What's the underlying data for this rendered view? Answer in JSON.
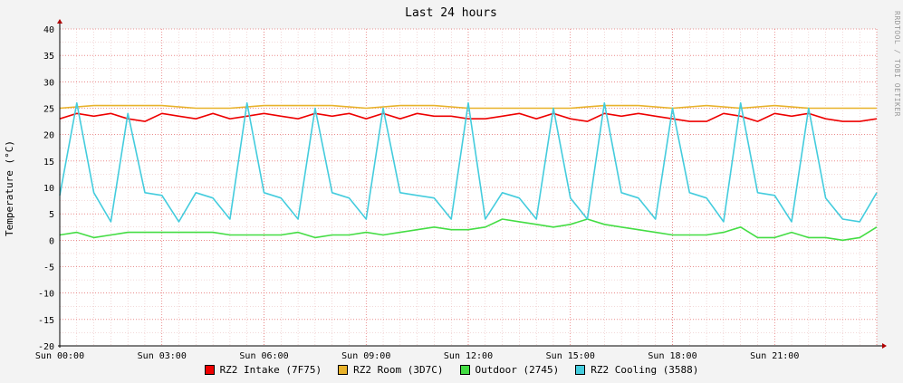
{
  "chart_data": {
    "type": "line",
    "title": "Last 24 hours",
    "ylabel": "Temperature (°C)",
    "xlabel": "",
    "ylim": [
      -20,
      40
    ],
    "yticks": [
      "40",
      "35",
      "30",
      "25",
      "20",
      "15",
      "10",
      "5",
      "0",
      "-5",
      "-10",
      "-15",
      "-20"
    ],
    "xticks": [
      "Sun 00:00",
      "Sun 03:00",
      "Sun 06:00",
      "Sun 09:00",
      "Sun 12:00",
      "Sun 15:00",
      "Sun 18:00",
      "Sun 21:00"
    ],
    "xlim_hours": [
      0,
      24
    ],
    "grid": true,
    "legend_position": "bottom",
    "series": [
      {
        "name": "RZ2 Intake (7F75)",
        "color": "#ee0000",
        "x": [
          0,
          0.5,
          1,
          1.5,
          2,
          2.5,
          3,
          3.5,
          4,
          4.5,
          5,
          5.5,
          6,
          6.5,
          7,
          7.5,
          8,
          8.5,
          9,
          9.5,
          10,
          10.5,
          11,
          11.5,
          12,
          12.5,
          13,
          13.5,
          14,
          14.5,
          15,
          15.5,
          16,
          16.5,
          17,
          17.5,
          18,
          18.5,
          19,
          19.5,
          20,
          20.5,
          21,
          21.5,
          22,
          22.5,
          23,
          23.5,
          24
        ],
        "y": [
          23,
          24,
          23.5,
          24,
          23,
          22.5,
          24,
          23.5,
          23,
          24,
          23,
          23.5,
          24,
          23.5,
          23,
          24,
          23.5,
          24,
          23,
          24,
          23,
          24,
          23.5,
          23.5,
          23,
          23,
          23.5,
          24,
          23,
          24,
          23,
          22.5,
          24,
          23.5,
          24,
          23.5,
          23,
          22.5,
          22.5,
          24,
          23.5,
          22.5,
          24,
          23.5,
          24,
          23,
          22.5,
          22.5,
          23
        ]
      },
      {
        "name": "RZ2 Room (3D7C)",
        "color": "#e8b22a",
        "x": [
          0,
          1,
          2,
          3,
          4,
          5,
          6,
          7,
          8,
          9,
          10,
          11,
          12,
          13,
          14,
          15,
          16,
          17,
          18,
          19,
          20,
          21,
          22,
          23,
          24
        ],
        "y": [
          25,
          25.5,
          25.5,
          25.5,
          25,
          25,
          25.5,
          25.5,
          25.5,
          25,
          25.5,
          25.5,
          25,
          25,
          25,
          25,
          25.5,
          25.5,
          25,
          25.5,
          25,
          25.5,
          25,
          25,
          25
        ]
      },
      {
        "name": "Outdoor (2745)",
        "color": "#44dd44",
        "x": [
          0,
          0.5,
          1,
          1.5,
          2,
          2.5,
          3,
          3.5,
          4,
          4.5,
          5,
          5.5,
          6,
          6.5,
          7,
          7.5,
          8,
          8.5,
          9,
          9.5,
          10,
          10.5,
          11,
          11.5,
          12,
          12.5,
          13,
          13.5,
          14,
          14.5,
          15,
          15.5,
          16,
          16.5,
          17,
          17.5,
          18,
          18.5,
          19,
          19.5,
          20,
          20.5,
          21,
          21.5,
          22,
          22.5,
          23,
          23.5,
          24
        ],
        "y": [
          1,
          1.5,
          0.5,
          1,
          1.5,
          1.5,
          1.5,
          1.5,
          1.5,
          1.5,
          1,
          1,
          1,
          1,
          1.5,
          0.5,
          1,
          1,
          1.5,
          1,
          1.5,
          2,
          2.5,
          2,
          2,
          2.5,
          4,
          3.5,
          3,
          2.5,
          3,
          4,
          3,
          2.5,
          2,
          1.5,
          1,
          1,
          1,
          1.5,
          2.5,
          0.5,
          0.5,
          1.5,
          0.5,
          0.5,
          0,
          0.5,
          2.5
        ]
      },
      {
        "name": "RZ2 Cooling (3588)",
        "color": "#44ccdd",
        "x": [
          0,
          0.5,
          1,
          1.5,
          2,
          2.5,
          3,
          3.5,
          4,
          4.5,
          5,
          5.5,
          6,
          6.5,
          7,
          7.5,
          8,
          8.5,
          9,
          9.5,
          10,
          10.5,
          11,
          11.5,
          12,
          12.5,
          13,
          13.5,
          14,
          14.5,
          15,
          15.5,
          16,
          16.5,
          17,
          17.5,
          18,
          18.5,
          19,
          19.5,
          20,
          20.5,
          21,
          21.5,
          22,
          22.5,
          23,
          23.5,
          24
        ],
        "y": [
          8.5,
          26,
          9,
          3.5,
          24,
          9,
          8.5,
          3.5,
          9,
          8,
          4,
          26,
          9,
          8,
          4,
          25,
          9,
          8,
          4,
          25,
          9,
          8.5,
          8,
          4,
          26,
          4,
          9,
          8,
          4,
          25,
          8,
          4,
          26,
          9,
          8,
          4,
          25,
          9,
          8,
          3.5,
          26,
          9,
          8.5,
          3.5,
          25,
          8,
          4,
          3.5,
          9
        ]
      }
    ]
  },
  "watermark": "RRDTOOL / TOBI OETIKER"
}
